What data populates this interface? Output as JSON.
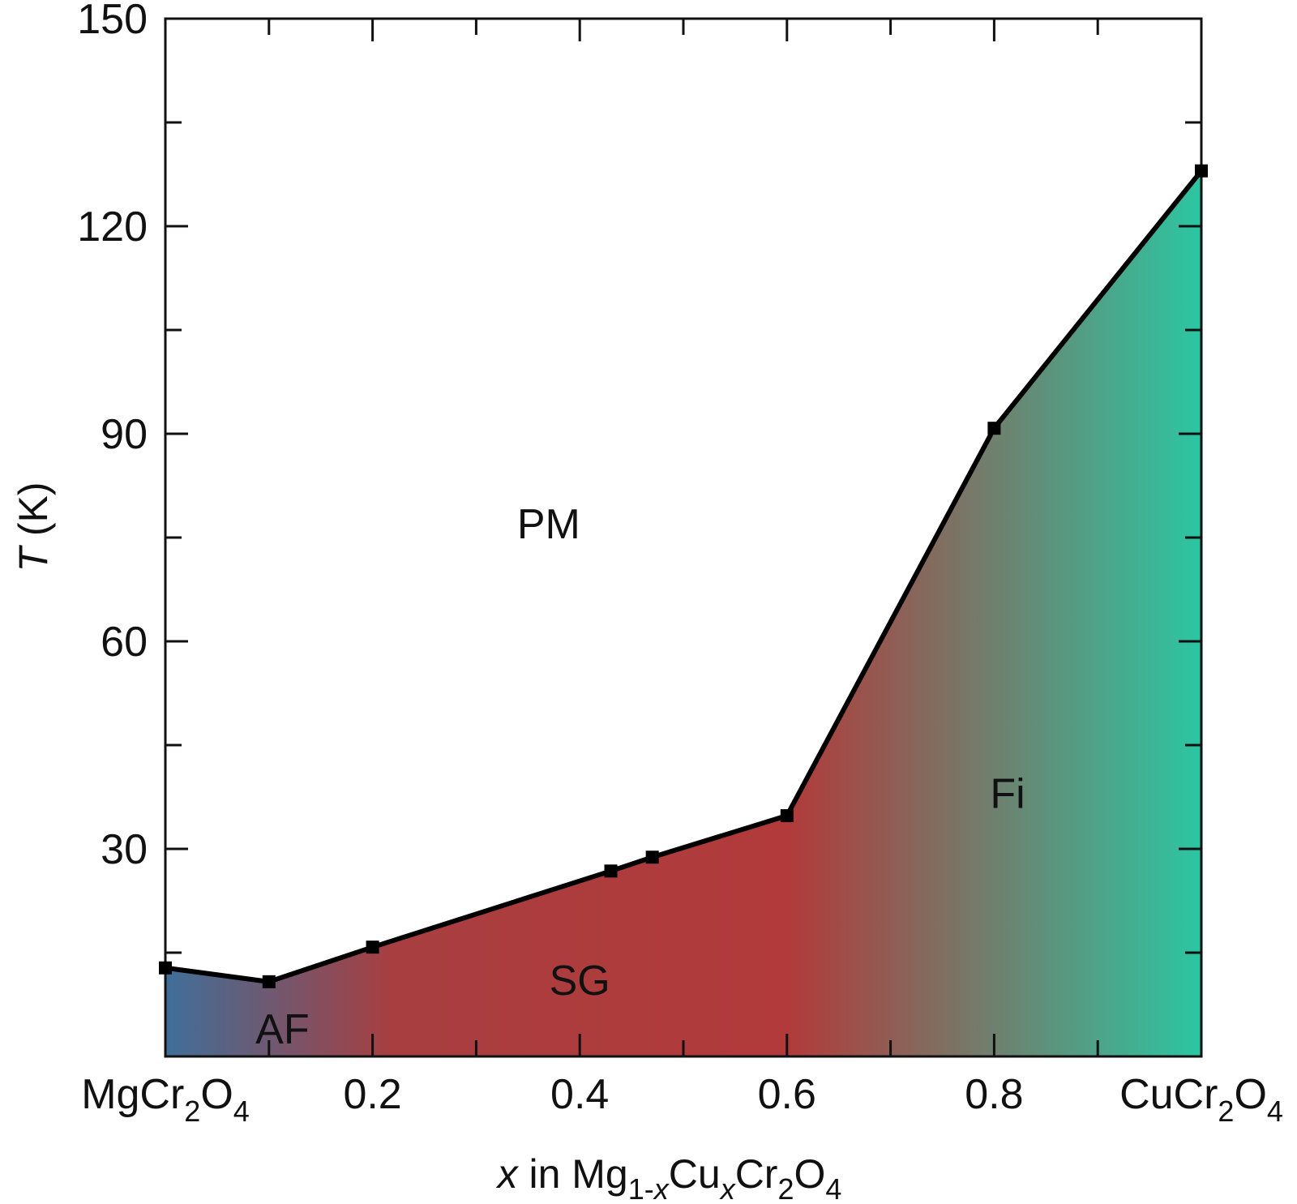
{
  "chart_data": {
    "type": "area",
    "xlabel": {
      "italic": "x",
      "pre": " in Mg",
      "sub1": "1-",
      "sub1i": "x",
      "mid": "Cu",
      "sub2": "x",
      "mid2": "Cr",
      "sub3": "2",
      "mid3": "O",
      "sub4": "4"
    },
    "ylabel": {
      "italic": "T",
      "rest": " (K)"
    },
    "xlim": [
      0,
      1
    ],
    "ylim": [
      0,
      150
    ],
    "x_ticks": [
      {
        "x": 0.0,
        "label": "MgCr",
        "sub": "2",
        "label2": "O",
        "sub2": "4"
      },
      {
        "x": 0.2,
        "label": "0.2"
      },
      {
        "x": 0.4,
        "label": "0.4"
      },
      {
        "x": 0.6,
        "label": "0.6"
      },
      {
        "x": 0.8,
        "label": "0.8"
      },
      {
        "x": 1.0,
        "label": "CuCr",
        "sub": "2",
        "label2": "O",
        "sub2": "4"
      }
    ],
    "x_minor": [
      0.1,
      0.3,
      0.5,
      0.7,
      0.9
    ],
    "y_ticks": [
      {
        "y": 30,
        "label": "30"
      },
      {
        "y": 60,
        "label": "60"
      },
      {
        "y": 90,
        "label": "90"
      },
      {
        "y": 120,
        "label": "120"
      },
      {
        "y": 150,
        "label": "150"
      }
    ],
    "y_minor": [
      15,
      45,
      75,
      105,
      135
    ],
    "series": [
      {
        "x": [
          0.0,
          0.1,
          0.2,
          0.43,
          0.47,
          0.6,
          0.8,
          1.0
        ],
        "y": [
          12.8,
          10.8,
          15.8,
          26.8,
          28.8,
          34.8,
          90.8,
          128.0
        ]
      }
    ],
    "regions": [
      {
        "label": "PM",
        "x": 0.37,
        "y": 77
      },
      {
        "label": "SG",
        "x": 0.4,
        "y": 11
      },
      {
        "label": "AF",
        "x": 0.113,
        "y": 4
      },
      {
        "label": "Fi",
        "x": 0.813,
        "y": 38
      }
    ],
    "fill_colors": [
      "#3f6f9a",
      "#a83e40",
      "#b23a3a",
      "#2cc6a2"
    ]
  }
}
